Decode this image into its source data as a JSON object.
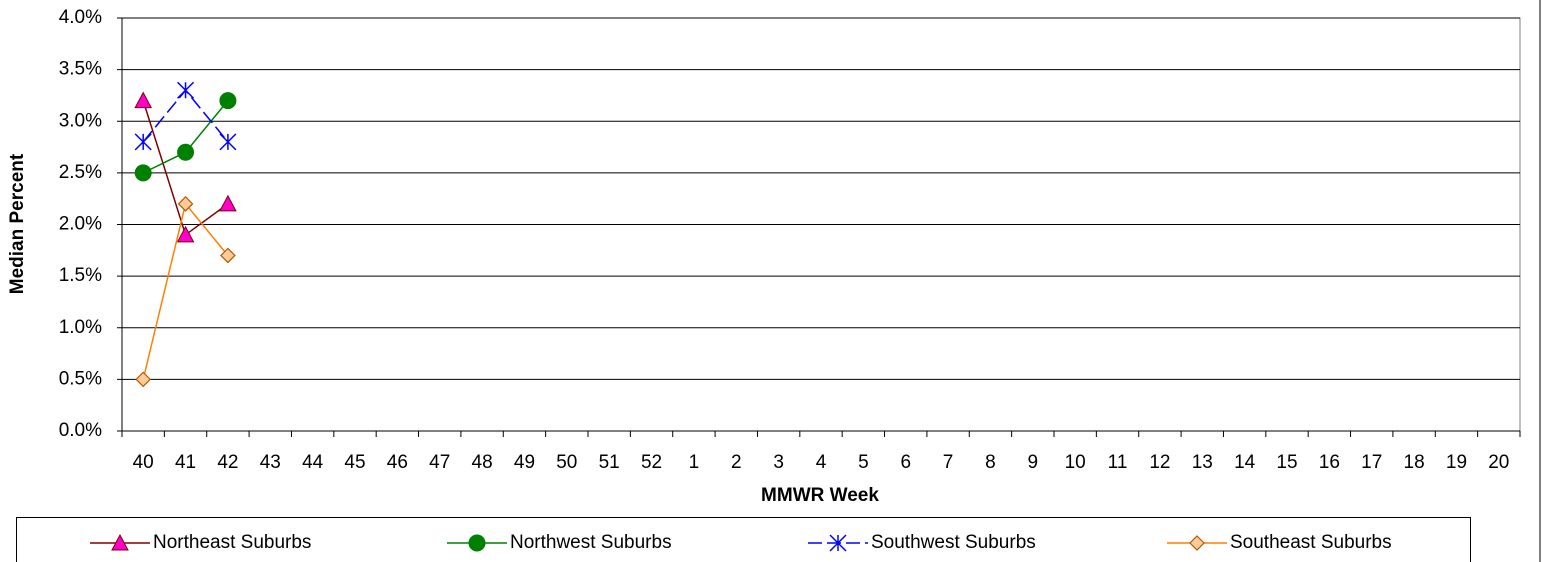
{
  "chart_data": {
    "type": "line",
    "y_axis_label": "Median Percent",
    "x_axis_label": "MMWR Week",
    "categories": [
      "40",
      "41",
      "42",
      "43",
      "44",
      "45",
      "46",
      "47",
      "48",
      "49",
      "50",
      "51",
      "52",
      "1",
      "2",
      "3",
      "4",
      "5",
      "6",
      "7",
      "8",
      "9",
      "10",
      "11",
      "12",
      "13",
      "14",
      "15",
      "16",
      "17",
      "18",
      "19",
      "20"
    ],
    "series": [
      {
        "name": "Northeast Suburbs",
        "color": "#800000",
        "marker": "triangle",
        "marker_color": "#ff00cc",
        "values": [
          3.2,
          1.9,
          2.2,
          null,
          null,
          null,
          null,
          null,
          null,
          null,
          null,
          null,
          null,
          null,
          null,
          null,
          null,
          null,
          null,
          null,
          null,
          null,
          null,
          null,
          null,
          null,
          null,
          null,
          null,
          null,
          null,
          null,
          null
        ]
      },
      {
        "name": "Northwest Suburbs",
        "color": "#008000",
        "marker": "circle",
        "marker_color": "#008000",
        "values": [
          2.5,
          2.7,
          3.2,
          null,
          null,
          null,
          null,
          null,
          null,
          null,
          null,
          null,
          null,
          null,
          null,
          null,
          null,
          null,
          null,
          null,
          null,
          null,
          null,
          null,
          null,
          null,
          null,
          null,
          null,
          null,
          null,
          null,
          null
        ]
      },
      {
        "name": "Southwest Suburbs",
        "color": "#0000ff",
        "marker": "star",
        "marker_color": "#0000ff",
        "values": [
          2.8,
          3.3,
          2.8,
          null,
          null,
          null,
          null,
          null,
          null,
          null,
          null,
          null,
          null,
          null,
          null,
          null,
          null,
          null,
          null,
          null,
          null,
          null,
          null,
          null,
          null,
          null,
          null,
          null,
          null,
          null,
          null,
          null,
          null
        ]
      },
      {
        "name": "Southeast Suburbs",
        "color": "#ff8000",
        "marker": "diamond",
        "marker_color": "#ffcc99",
        "values": [
          0.5,
          2.2,
          1.7,
          null,
          null,
          null,
          null,
          null,
          null,
          null,
          null,
          null,
          null,
          null,
          null,
          null,
          null,
          null,
          null,
          null,
          null,
          null,
          null,
          null,
          null,
          null,
          null,
          null,
          null,
          null,
          null,
          null,
          null
        ]
      }
    ],
    "ylim": [
      0,
      4
    ],
    "yticks": [
      {
        "value": 0,
        "label": "0.0%"
      },
      {
        "value": 0.5,
        "label": "0.5%"
      },
      {
        "value": 1,
        "label": "1.0%"
      },
      {
        "value": 1.5,
        "label": "1.5%"
      },
      {
        "value": 2,
        "label": "2.0%"
      },
      {
        "value": 2.5,
        "label": "2.5%"
      },
      {
        "value": 3,
        "label": "3.0%"
      },
      {
        "value": 3.5,
        "label": "3.5%"
      },
      {
        "value": 4,
        "label": "4.0%"
      }
    ],
    "grid": true,
    "legend": "bottom"
  }
}
